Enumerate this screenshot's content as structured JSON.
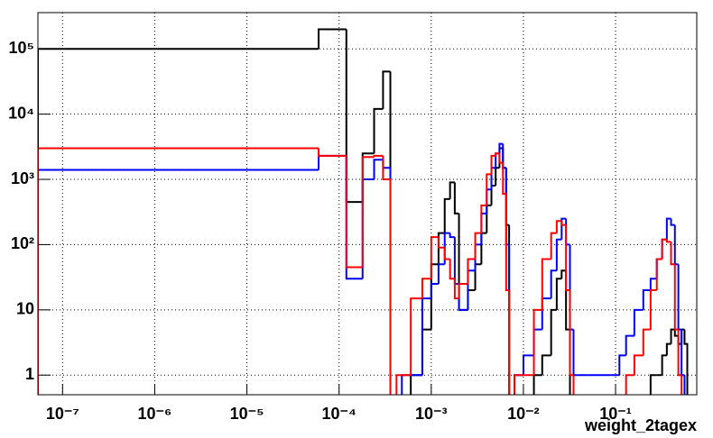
{
  "chart_data": {
    "type": "histogram",
    "x_label": "weight_2tagex",
    "xscale": "log",
    "yscale": "log",
    "grid": true,
    "xlim": [
      5.4e-08,
      0.76
    ],
    "ylim": [
      0.5,
      360000
    ],
    "xticks": [
      {
        "value": 1e-07,
        "label": "10⁻⁷"
      },
      {
        "value": 1e-06,
        "label": "10⁻⁶"
      },
      {
        "value": 1e-05,
        "label": "10⁻⁵"
      },
      {
        "value": 0.0001,
        "label": "10⁻⁴"
      },
      {
        "value": 0.001,
        "label": "10⁻³"
      },
      {
        "value": 0.01,
        "label": "10⁻²"
      },
      {
        "value": 0.1,
        "label": "10⁻¹"
      }
    ],
    "yticks": [
      1,
      10,
      {
        "value": 100,
        "label": "10²"
      },
      {
        "value": 1000,
        "label": "10³"
      },
      {
        "value": 10000,
        "label": "10⁴"
      },
      {
        "value": 100000,
        "label": "10⁵"
      }
    ],
    "bins": [
      0,
      6e-05,
      0.00012,
      0.00018,
      0.00024,
      0.0003,
      0.00036,
      0.00042,
      0.00048,
      0.0006,
      0.0008,
      0.001,
      0.0012,
      0.0014,
      0.0016,
      0.0018,
      0.002,
      0.0025,
      0.003,
      0.0035,
      0.004,
      0.0045,
      0.005,
      0.0055,
      0.006,
      0.0065,
      0.007,
      0.008,
      0.01,
      0.013,
      0.016,
      0.02,
      0.023,
      0.026,
      0.029,
      0.032,
      0.035,
      0.04,
      0.05,
      0.07,
      0.09,
      0.11,
      0.13,
      0.16,
      0.2,
      0.24,
      0.28,
      0.32,
      0.36,
      0.4,
      0.44,
      0.48,
      0.52,
      0.56,
      0.6
    ],
    "series": [
      {
        "color": "#000000",
        "values": [
          100000,
          200000,
          450,
          2500,
          12000,
          45000,
          0,
          0,
          0,
          1,
          5,
          50,
          150,
          500,
          900,
          300,
          10,
          20,
          50,
          150,
          400,
          800,
          1500,
          3000,
          1500,
          200,
          0,
          0,
          0,
          1,
          2,
          10,
          30,
          40,
          5,
          0,
          0,
          0,
          0,
          0,
          0,
          0,
          0,
          0,
          0,
          1,
          1,
          2,
          3,
          5,
          4,
          3,
          5,
          3
        ]
      },
      {
        "color": "#0000ff",
        "values": [
          1400,
          2300,
          30,
          1000,
          2000,
          1500,
          0,
          0,
          1,
          1,
          15,
          25,
          50,
          150,
          130,
          25,
          10,
          40,
          100,
          300,
          700,
          1500,
          2500,
          3500,
          1500,
          100,
          0,
          1,
          2,
          5,
          15,
          40,
          120,
          250,
          100,
          5,
          1,
          1,
          1,
          1,
          1,
          2,
          4,
          10,
          20,
          30,
          60,
          120,
          250,
          200,
          50,
          5,
          1,
          0
        ]
      },
      {
        "color": "#ff0000",
        "values": [
          3000,
          2300,
          45,
          2200,
          2300,
          1000,
          0,
          1,
          1,
          15,
          30,
          130,
          90,
          60,
          30,
          15,
          25,
          60,
          150,
          400,
          1200,
          2300,
          2500,
          1800,
          600,
          20,
          0,
          1,
          1,
          10,
          60,
          150,
          230,
          200,
          20,
          1,
          0,
          0,
          0,
          0,
          0,
          0,
          1,
          2,
          5,
          20,
          60,
          120,
          110,
          50,
          5,
          1,
          0,
          0
        ]
      }
    ]
  }
}
